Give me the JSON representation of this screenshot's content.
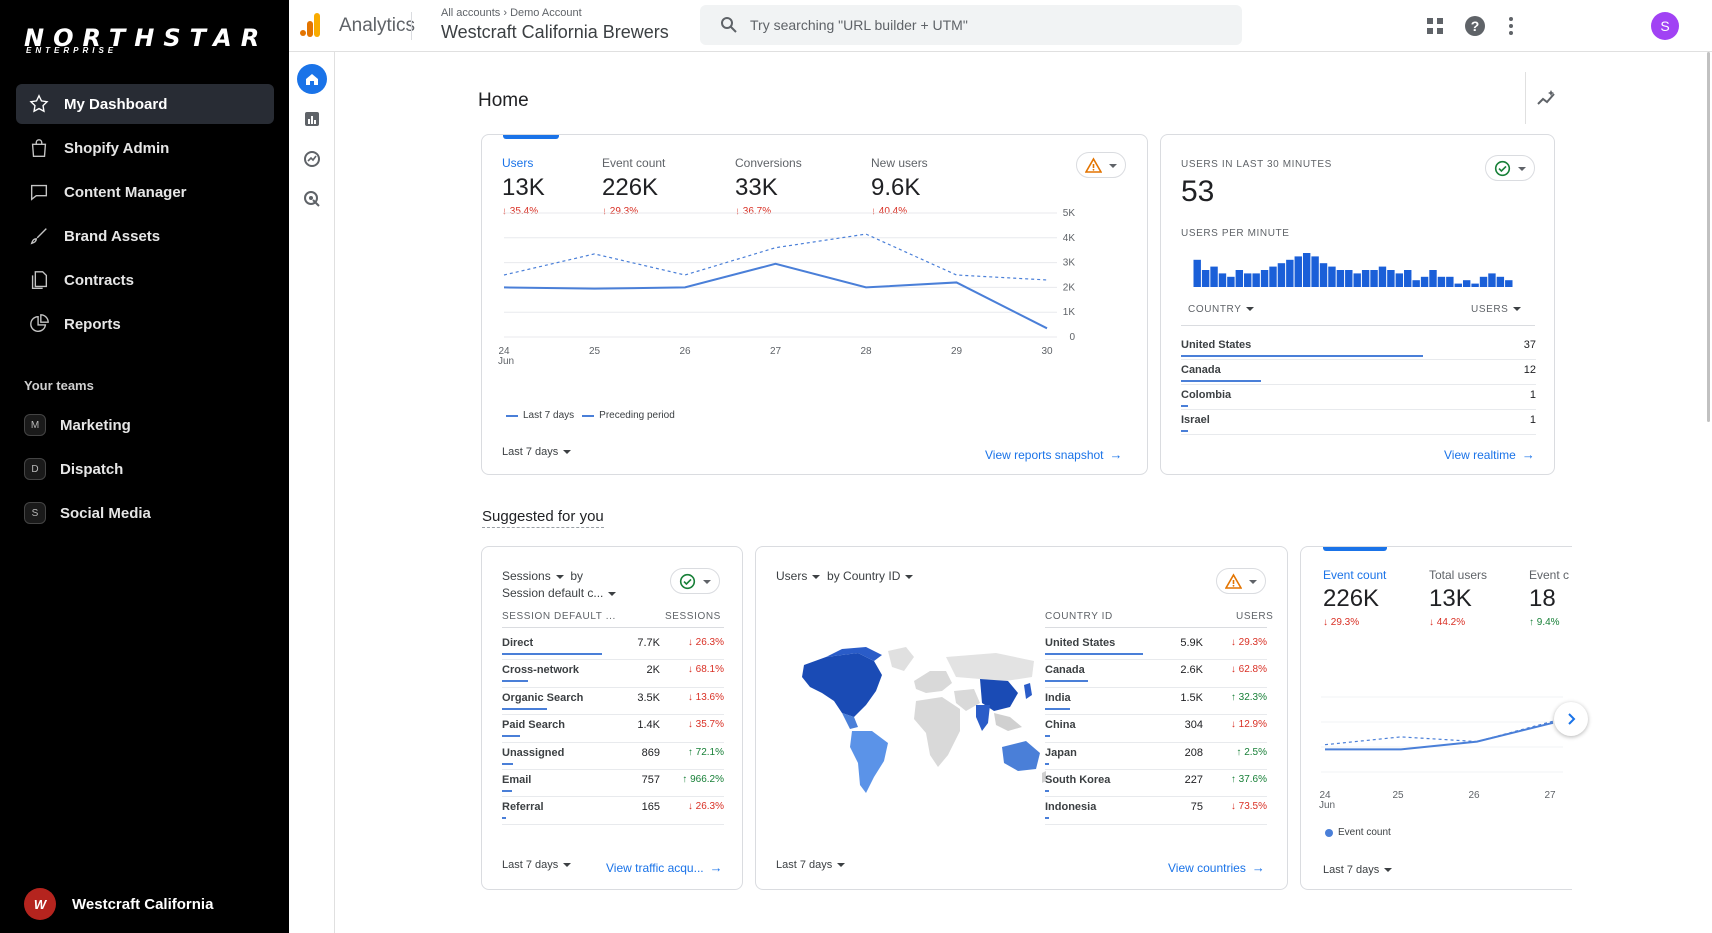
{
  "brand": {
    "name": "NORTHSTAR",
    "sub": "ENTERPRISE"
  },
  "sidebar": {
    "items": [
      {
        "label": "My Dashboard",
        "icon": "star-icon"
      },
      {
        "label": "Shopify Admin",
        "icon": "shopping-bag-icon"
      },
      {
        "label": "Content Manager",
        "icon": "chat-bubble-icon"
      },
      {
        "label": "Brand Assets",
        "icon": "brush-icon"
      },
      {
        "label": "Contracts",
        "icon": "documents-icon"
      },
      {
        "label": "Reports",
        "icon": "pie-chart-icon"
      }
    ],
    "teams_heading": "Your teams",
    "teams": [
      {
        "initial": "M",
        "label": "Marketing"
      },
      {
        "initial": "D",
        "label": "Dispatch"
      },
      {
        "initial": "S",
        "label": "Social Media"
      }
    ],
    "org": "Westcraft California"
  },
  "topbar": {
    "app": "Analytics",
    "breadcrumb": "All accounts  ›  Demo Account",
    "property": "Westcraft California Brewers",
    "search_placeholder": "Try searching \"URL builder + UTM\"",
    "avatar": "S"
  },
  "page": {
    "title": "Home",
    "suggested": "Suggested for you"
  },
  "overview": {
    "metrics": [
      {
        "label": "Users",
        "value": "13K",
        "delta": "↓ 35.4%"
      },
      {
        "label": "Event count",
        "value": "226K",
        "delta": "↓ 29.3%"
      },
      {
        "label": "Conversions",
        "value": "33K",
        "delta": "↓ 36.7%"
      },
      {
        "label": "New users",
        "value": "9.6K",
        "delta": "↓ 40.4%"
      }
    ],
    "x_ticks": [
      "24",
      "25",
      "26",
      "27",
      "28",
      "29",
      "30"
    ],
    "x_sub": "Jun",
    "y_ticks": [
      "5K",
      "4K",
      "3K",
      "2K",
      "1K",
      "0"
    ],
    "legend_current": "Last 7 days",
    "legend_previous": "Preceding period",
    "range": "Last 7 days",
    "link": "View reports snapshot"
  },
  "chart_data": [
    {
      "type": "line",
      "categories": [
        "24",
        "25",
        "26",
        "27",
        "28",
        "29",
        "30"
      ],
      "ylim": [
        0,
        5000
      ],
      "series": [
        {
          "name": "Last 7 days",
          "values": [
            2000,
            1950,
            2000,
            2950,
            2000,
            2200,
            350
          ]
        },
        {
          "name": "Preceding period",
          "values": [
            2500,
            3350,
            2500,
            3600,
            4150,
            2500,
            2300
          ]
        }
      ]
    },
    {
      "type": "bar",
      "title": "USERS PER MINUTE",
      "values": [
        8,
        5,
        6,
        4,
        3,
        5,
        4,
        4,
        5,
        6,
        7,
        8,
        9,
        10,
        9,
        7,
        6,
        5,
        5,
        4,
        5,
        5,
        6,
        5,
        4,
        5,
        2,
        3,
        5,
        3,
        3,
        1,
        2,
        1,
        3,
        4,
        3,
        2
      ]
    },
    {
      "type": "line",
      "categories": [
        "24",
        "25",
        "26",
        "27"
      ],
      "series": [
        {
          "name": "Event count",
          "values": [
            66,
            66,
            76,
            100
          ]
        },
        {
          "name": "Preceding period",
          "values": [
            72,
            82,
            76,
            102
          ]
        }
      ]
    }
  ],
  "realtime": {
    "title": "USERS IN LAST 30 MINUTES",
    "value": "53",
    "per_minute": "USERS PER MINUTE",
    "col_country": "COUNTRY",
    "col_users": "USERS",
    "rows": [
      {
        "name": "United States",
        "value": "37",
        "share": 1.0
      },
      {
        "name": "Canada",
        "value": "12",
        "share": 0.33
      },
      {
        "name": "Colombia",
        "value": "1",
        "share": 0.03
      },
      {
        "name": "Israel",
        "value": "1",
        "share": 0.03
      }
    ],
    "link": "View realtime"
  },
  "sessions_card": {
    "title1": "Sessions",
    "title1b": "by",
    "title2": "Session default c...",
    "col1": "SESSION DEFAULT ...",
    "col2": "SESSIONS",
    "rows": [
      {
        "name": "Direct",
        "value": "7.7K",
        "delta": "↓ 26.3%",
        "dir": "down",
        "share": 1.0
      },
      {
        "name": "Cross-network",
        "value": "2K",
        "delta": "↓ 68.1%",
        "dir": "down",
        "share": 0.26
      },
      {
        "name": "Organic Search",
        "value": "3.5K",
        "delta": "↓ 13.6%",
        "dir": "down",
        "share": 0.45
      },
      {
        "name": "Paid Search",
        "value": "1.4K",
        "delta": "↓ 35.7%",
        "dir": "down",
        "share": 0.18
      },
      {
        "name": "Unassigned",
        "value": "869",
        "delta": "↑ 72.1%",
        "dir": "up",
        "share": 0.11
      },
      {
        "name": "Email",
        "value": "757",
        "delta": "↑ 966.2%",
        "dir": "up",
        "share": 0.1
      },
      {
        "name": "Referral",
        "value": "165",
        "delta": "↓ 26.3%",
        "dir": "down",
        "share": 0.02
      }
    ],
    "range": "Last 7 days",
    "link": "View traffic acqu..."
  },
  "country_card": {
    "title1": "Users",
    "title2": "by Country ID",
    "col1": "COUNTRY ID",
    "col2": "USERS",
    "rows": [
      {
        "name": "United States",
        "value": "5.9K",
        "delta": "↓ 29.3%",
        "dir": "down",
        "share": 1.0
      },
      {
        "name": "Canada",
        "value": "2.6K",
        "delta": "↓ 62.8%",
        "dir": "down",
        "share": 0.44
      },
      {
        "name": "India",
        "value": "1.5K",
        "delta": "↑ 32.3%",
        "dir": "up",
        "share": 0.25
      },
      {
        "name": "China",
        "value": "304",
        "delta": "↓ 12.9%",
        "dir": "down",
        "share": 0.05
      },
      {
        "name": "Japan",
        "value": "208",
        "delta": "↑ 2.5%",
        "dir": "up",
        "share": 0.04
      },
      {
        "name": "South Korea",
        "value": "227",
        "delta": "↑ 37.6%",
        "dir": "up",
        "share": 0.04
      },
      {
        "name": "Indonesia",
        "value": "75",
        "delta": "↓ 73.5%",
        "dir": "down",
        "share": 0.01
      }
    ],
    "range": "Last 7 days",
    "link": "View countries"
  },
  "event_card": {
    "metrics": [
      {
        "label": "Event count",
        "value": "226K",
        "delta": "↓ 29.3%",
        "dir": "down"
      },
      {
        "label": "Total users",
        "value": "13K",
        "delta": "↓ 44.2%",
        "dir": "down"
      },
      {
        "label": "Event c",
        "value": "18",
        "delta": "↑ 9.4%",
        "dir": "up"
      }
    ],
    "x_ticks": [
      "24",
      "25",
      "26",
      "27"
    ],
    "x_sub": "Jun",
    "legend": "Event count",
    "range": "Last 7 days"
  },
  "colors": {
    "accent": "#1a73e8",
    "series": "#4a7fd8",
    "down": "#d93025",
    "up": "#188038",
    "sidebar": "#000000"
  }
}
